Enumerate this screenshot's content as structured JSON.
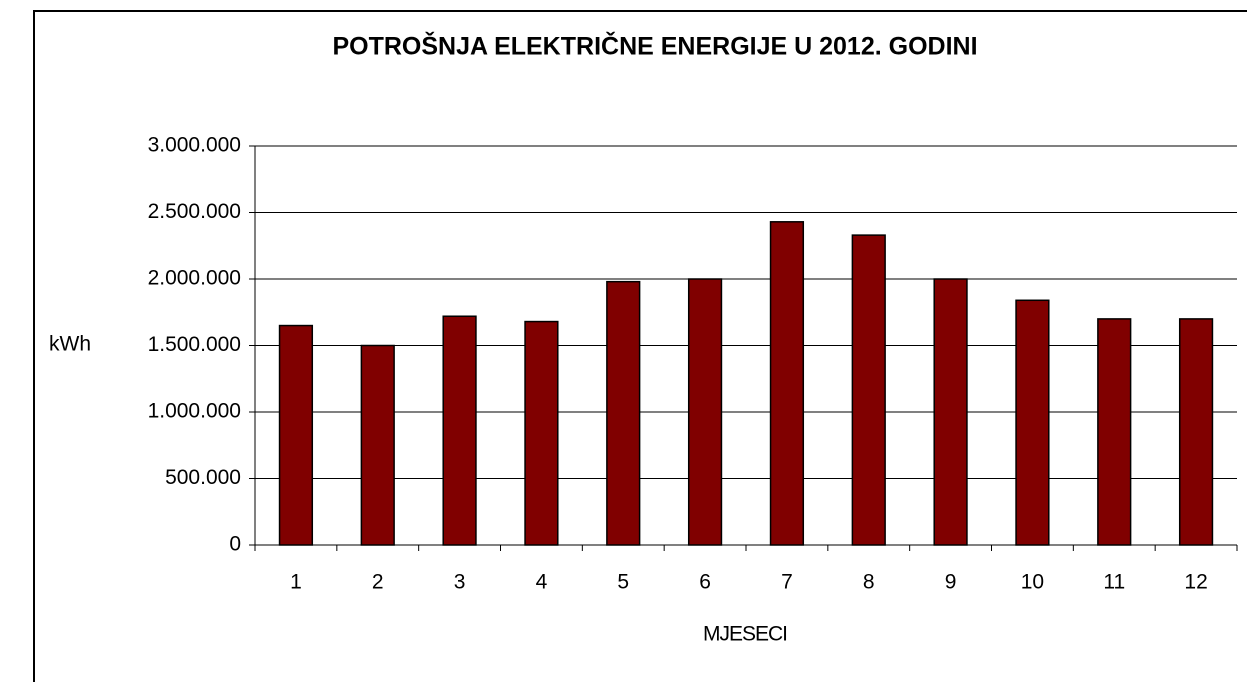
{
  "chart_data": {
    "type": "bar",
    "title": "POTROŠNJA ELEKTRIČNE ENERGIJE U 2012. GODINI",
    "y_label": "kWh",
    "x_label": "MJESECI",
    "categories": [
      "1",
      "2",
      "3",
      "4",
      "5",
      "6",
      "7",
      "8",
      "9",
      "10",
      "11",
      "12"
    ],
    "values": [
      1650000,
      1500000,
      1720000,
      1680000,
      1980000,
      2000000,
      2430000,
      2330000,
      2000000,
      1840000,
      1700000,
      1700000
    ],
    "color": "#800000",
    "ylim": [
      0,
      3000000
    ],
    "yticks": [
      0,
      {
        "value": 500000,
        "label": "500.000"
      },
      {
        "value": 1000000,
        "label": "1.000.000"
      },
      {
        "value": 1500000,
        "label": "1.500.000"
      },
      {
        "value": 2000000,
        "label": "2.000.000"
      },
      {
        "value": 2500000,
        "label": "2.500.000"
      },
      {
        "value": 3000000,
        "label": "3.000.000"
      }
    ],
    "grid": true
  }
}
